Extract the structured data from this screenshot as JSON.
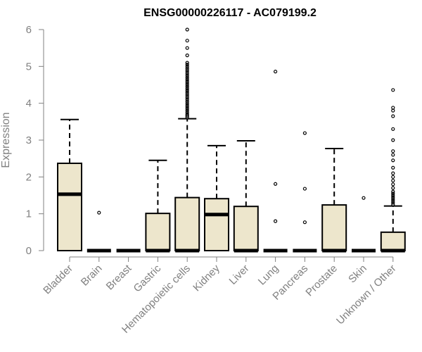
{
  "chart_data": {
    "type": "boxplot",
    "title": "ENSG00000226117 - AC079199.2",
    "xlabel": "",
    "ylabel": "Expression",
    "ylim": [
      0,
      6
    ],
    "yticks": [
      0,
      1,
      2,
      3,
      4,
      5,
      6
    ],
    "grid": false,
    "legend": "none",
    "colors": {
      "box_fill": "#ede6cc",
      "box_stroke": "#000000",
      "axis": "#808080",
      "title": "#000000"
    },
    "categories": [
      "Bladder",
      "Brain",
      "Breast",
      "Gastric",
      "Hematopoietic cells",
      "Kidney",
      "Liver",
      "Lung",
      "Pancreas",
      "Prostate",
      "Skin",
      "Unknown / Other"
    ],
    "boxes": [
      {
        "category": "Bladder",
        "q1": 0.0,
        "median": 1.53,
        "q3": 2.37,
        "whisker_low": 0.0,
        "whisker_high": 3.56,
        "outliers": []
      },
      {
        "category": "Brain",
        "q1": 0.0,
        "median": 0.0,
        "q3": 0.0,
        "whisker_low": 0.0,
        "whisker_high": 0.0,
        "outliers": [
          1.03
        ]
      },
      {
        "category": "Breast",
        "q1": 0.0,
        "median": 0.0,
        "q3": 0.0,
        "whisker_low": 0.0,
        "whisker_high": 0.0,
        "outliers": []
      },
      {
        "category": "Gastric",
        "q1": 0.0,
        "median": 0.0,
        "q3": 1.01,
        "whisker_low": 0.0,
        "whisker_high": 2.45,
        "outliers": []
      },
      {
        "category": "Hematopoietic cells",
        "q1": 0.0,
        "median": 0.0,
        "q3": 1.44,
        "whisker_low": 0.0,
        "whisker_high": 3.58,
        "outliers": [
          3.62,
          3.66,
          3.7,
          3.75,
          3.8,
          3.85,
          3.9,
          3.95,
          4.0,
          4.05,
          4.1,
          4.15,
          4.2,
          4.25,
          4.3,
          4.35,
          4.4,
          4.45,
          4.5,
          4.55,
          4.6,
          4.65,
          4.7,
          4.75,
          4.8,
          4.85,
          4.9,
          4.95,
          5.0,
          5.05,
          5.1,
          5.3,
          5.5,
          5.7,
          6.0
        ]
      },
      {
        "category": "Kidney",
        "q1": 0.0,
        "median": 0.98,
        "q3": 1.41,
        "whisker_low": 0.0,
        "whisker_high": 2.85,
        "outliers": []
      },
      {
        "category": "Liver",
        "q1": 0.0,
        "median": 0.0,
        "q3": 1.2,
        "whisker_low": 0.0,
        "whisker_high": 2.98,
        "outliers": []
      },
      {
        "category": "Lung",
        "q1": 0.0,
        "median": 0.0,
        "q3": 0.0,
        "whisker_low": 0.0,
        "whisker_high": 0.0,
        "outliers": [
          0.8,
          1.81,
          4.86
        ]
      },
      {
        "category": "Pancreas",
        "q1": 0.0,
        "median": 0.0,
        "q3": 0.0,
        "whisker_low": 0.0,
        "whisker_high": 0.0,
        "outliers": [
          0.77,
          1.68,
          3.19
        ]
      },
      {
        "category": "Prostate",
        "q1": 0.0,
        "median": 0.0,
        "q3": 1.24,
        "whisker_low": 0.0,
        "whisker_high": 2.77,
        "outliers": []
      },
      {
        "category": "Skin",
        "q1": 0.0,
        "median": 0.0,
        "q3": 0.0,
        "whisker_low": 0.0,
        "whisker_high": 0.0,
        "outliers": [
          1.43
        ]
      },
      {
        "category": "Unknown / Other",
        "q1": 0.0,
        "median": 0.0,
        "q3": 0.5,
        "whisker_low": 0.0,
        "whisker_high": 1.21,
        "outliers": [
          1.25,
          1.3,
          1.35,
          1.4,
          1.45,
          1.5,
          1.55,
          1.6,
          1.7,
          1.8,
          1.9,
          2.0,
          2.1,
          2.25,
          2.45,
          2.6,
          2.7,
          3.0,
          3.3,
          3.65,
          3.8,
          3.88,
          4.36
        ]
      }
    ]
  }
}
